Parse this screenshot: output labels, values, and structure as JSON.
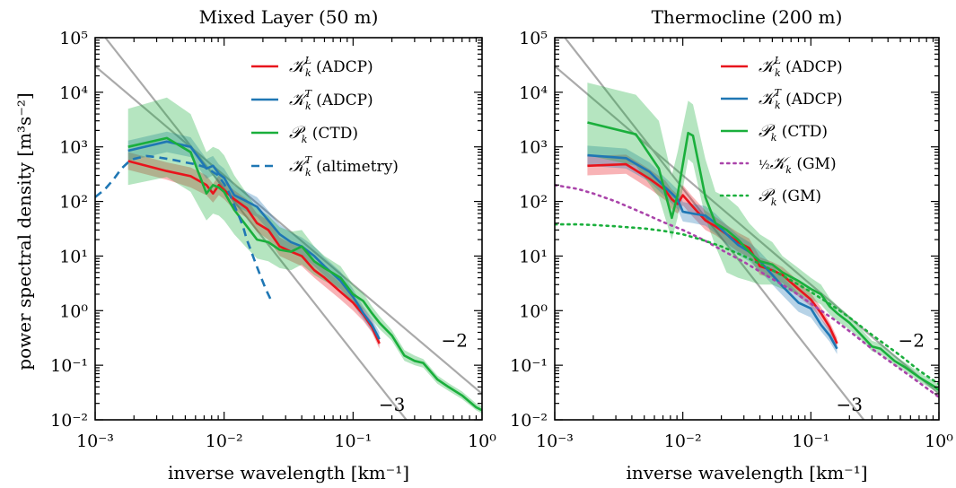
{
  "figure": {
    "ylabel": "power spectral density [m³s⁻²]",
    "xlabel": "inverse wavelength [km⁻¹]"
  },
  "chart_data": [
    {
      "type": "line",
      "title": "Mixed Layer (50 m)",
      "xlabel": "inverse wavelength [km⁻¹]",
      "ylabel": "power spectral density [m³s⁻²]",
      "xscale": "log",
      "yscale": "log",
      "xlim": [
        0.001,
        1
      ],
      "ylim": [
        0.01,
        100000
      ],
      "xticks": [
        "10⁻³",
        "10⁻²",
        "10⁻¹",
        "10⁰"
      ],
      "yticks": [
        "10⁻²",
        "10⁻¹",
        "10⁰",
        "10¹",
        "10²",
        "10³",
        "10⁴",
        "10⁵"
      ],
      "grid": false,
      "legend_position": "top-right",
      "series": [
        {
          "name": "KLk (ADCP)",
          "color": "#e8141c",
          "style": "solid",
          "x": [
            0.0018,
            0.0036,
            0.0055,
            0.0073,
            0.0082,
            0.0091,
            0.01,
            0.012,
            0.015,
            0.018,
            0.022,
            0.027,
            0.033,
            0.04,
            0.05,
            0.06,
            0.08,
            0.1,
            0.12,
            0.14,
            0.16
          ],
          "y": [
            550,
            360,
            290,
            200,
            140,
            200,
            160,
            110,
            75,
            40,
            30,
            15,
            12,
            10,
            5.5,
            4,
            2.2,
            1.4,
            0.85,
            0.5,
            0.25
          ],
          "band_lower": [
            380,
            250,
            180,
            130,
            95,
            130,
            110,
            70,
            50,
            28,
            20,
            10,
            8,
            6.5,
            4,
            2.8,
            1.6,
            1,
            0.65,
            0.4,
            0.2
          ],
          "band_upper": [
            800,
            520,
            420,
            300,
            210,
            300,
            230,
            160,
            110,
            60,
            45,
            22,
            17,
            14,
            8,
            5.8,
            3.2,
            1.9,
            1.1,
            0.65,
            0.32
          ]
        },
        {
          "name": "KTk (ADCP)",
          "color": "#1f77b4",
          "style": "solid",
          "x": [
            0.0018,
            0.0036,
            0.0055,
            0.0073,
            0.0082,
            0.0091,
            0.01,
            0.012,
            0.015,
            0.018,
            0.022,
            0.027,
            0.033,
            0.04,
            0.05,
            0.06,
            0.08,
            0.1,
            0.12,
            0.14,
            0.16
          ],
          "y": [
            850,
            1250,
            1000,
            400,
            450,
            320,
            270,
            130,
            100,
            80,
            45,
            25,
            18,
            15,
            10,
            6.5,
            3.5,
            1.8,
            0.9,
            0.55,
            0.3
          ],
          "band_lower": [
            550,
            800,
            650,
            260,
            300,
            210,
            180,
            85,
            65,
            52,
            30,
            16,
            12,
            10,
            6.5,
            4.4,
            2.4,
            1.3,
            0.7,
            0.42,
            0.23
          ],
          "band_upper": [
            1300,
            1900,
            1500,
            600,
            680,
            480,
            400,
            200,
            150,
            120,
            68,
            38,
            27,
            22,
            15,
            9.5,
            5.2,
            2.5,
            1.2,
            0.72,
            0.4
          ]
        },
        {
          "name": "Pk (CTD)",
          "color": "#1aaf3c",
          "style": "solid",
          "x": [
            0.0018,
            0.0036,
            0.0055,
            0.0073,
            0.0082,
            0.0091,
            0.01,
            0.012,
            0.015,
            0.018,
            0.022,
            0.027,
            0.033,
            0.04,
            0.05,
            0.06,
            0.08,
            0.1,
            0.12,
            0.14,
            0.16,
            0.2,
            0.25,
            0.3,
            0.35,
            0.45,
            0.55,
            0.7,
            0.9,
            1.0
          ],
          "y": [
            1000,
            1450,
            800,
            140,
            200,
            180,
            150,
            70,
            35,
            20,
            18,
            13,
            12,
            15,
            8,
            6,
            4,
            2,
            1.5,
            0.9,
            0.6,
            0.35,
            0.15,
            0.12,
            0.11,
            0.055,
            0.04,
            0.028,
            0.017,
            0.015
          ],
          "band_lower": [
            200,
            280,
            150,
            45,
            60,
            55,
            45,
            25,
            14,
            9,
            8,
            6,
            5.5,
            7,
            4.5,
            3.5,
            2.5,
            1.4,
            1.05,
            0.68,
            0.46,
            0.28,
            0.12,
            0.1,
            0.09,
            0.046,
            0.034,
            0.024,
            0.015,
            0.013
          ],
          "band_upper": [
            5000,
            8000,
            4000,
            800,
            1000,
            900,
            700,
            300,
            140,
            75,
            55,
            34,
            28,
            30,
            15,
            10,
            6.5,
            3,
            2.1,
            1.2,
            0.8,
            0.44,
            0.19,
            0.15,
            0.13,
            0.065,
            0.047,
            0.033,
            0.02,
            0.018
          ]
        },
        {
          "name": "KTk (altimetry)",
          "color": "#1f77b4",
          "style": "dashed",
          "x": [
            0.001,
            0.0012,
            0.0014,
            0.0016,
            0.0018,
            0.002,
            0.0025,
            0.003,
            0.004,
            0.005,
            0.006,
            0.007,
            0.008,
            0.009,
            0.01,
            0.011,
            0.012,
            0.013,
            0.014,
            0.015,
            0.017,
            0.019,
            0.021,
            0.023
          ],
          "y": [
            120,
            170,
            260,
            400,
            520,
            600,
            680,
            650,
            580,
            520,
            480,
            430,
            360,
            300,
            210,
            140,
            85,
            55,
            35,
            20,
            9,
            4.5,
            2.5,
            1.6
          ]
        }
      ],
      "reference_slopes": [
        {
          "label": "−2",
          "slope": -2,
          "x": [
            0.001,
            1
          ],
          "y": [
            30000,
            0.03
          ]
        },
        {
          "label": "−3",
          "slope": -3,
          "x": [
            0.0012,
            0.45
          ],
          "y": [
            100000,
            0.0019
          ]
        }
      ]
    },
    {
      "type": "line",
      "title": "Thermocline (200 m)",
      "xlabel": "inverse wavelength [km⁻¹]",
      "xscale": "log",
      "yscale": "log",
      "xlim": [
        0.001,
        1
      ],
      "ylim": [
        0.01,
        100000
      ],
      "xticks": [
        "10⁻³",
        "10⁻²",
        "10⁻¹",
        "10⁰"
      ],
      "yticks": [
        "10⁻²",
        "10⁻¹",
        "10⁰",
        "10¹",
        "10²",
        "10³",
        "10⁴",
        "10⁵"
      ],
      "grid": false,
      "legend_position": "top-right",
      "series": [
        {
          "name": "KLk (ADCP)",
          "color": "#e8141c",
          "style": "solid",
          "x": [
            0.0018,
            0.0036,
            0.0055,
            0.0073,
            0.0082,
            0.0091,
            0.01,
            0.012,
            0.015,
            0.018,
            0.022,
            0.027,
            0.033,
            0.04,
            0.05,
            0.06,
            0.08,
            0.1,
            0.12,
            0.14,
            0.16
          ],
          "y": [
            450,
            480,
            260,
            160,
            110,
            90,
            130,
            80,
            45,
            35,
            25,
            18,
            14,
            6.5,
            5.5,
            4.5,
            2.5,
            1.6,
            0.9,
            0.5,
            0.25
          ],
          "band_lower": [
            300,
            320,
            170,
            105,
            72,
            60,
            85,
            52,
            30,
            24,
            17,
            12,
            9.5,
            4.5,
            4,
            3.2,
            1.8,
            1.2,
            0.7,
            0.4,
            0.2
          ],
          "band_upper": [
            680,
            720,
            390,
            240,
            165,
            135,
            200,
            120,
            68,
            52,
            37,
            27,
            21,
            9.5,
            7.8,
            6.3,
            3.5,
            2.1,
            1.15,
            0.62,
            0.32
          ]
        },
        {
          "name": "KTk (ADCP)",
          "color": "#1f77b4",
          "style": "solid",
          "x": [
            0.0018,
            0.0036,
            0.0055,
            0.0073,
            0.0082,
            0.0091,
            0.01,
            0.012,
            0.015,
            0.018,
            0.022,
            0.027,
            0.033,
            0.04,
            0.05,
            0.06,
            0.08,
            0.1,
            0.12,
            0.14,
            0.16
          ],
          "y": [
            700,
            620,
            350,
            180,
            140,
            110,
            65,
            60,
            55,
            40,
            25,
            16,
            12,
            8,
            4.5,
            2.8,
            1.4,
            1.1,
            0.55,
            0.35,
            0.2
          ],
          "band_lower": [
            450,
            400,
            230,
            120,
            92,
            72,
            43,
            40,
            36,
            26,
            16,
            10.5,
            8,
            5.3,
            3,
            1.9,
            0.95,
            0.75,
            0.42,
            0.27,
            0.16
          ],
          "band_upper": [
            1050,
            930,
            520,
            270,
            210,
            165,
            98,
            90,
            82,
            60,
            37,
            24,
            18,
            12,
            6.8,
            4.2,
            2.1,
            1.55,
            0.72,
            0.46,
            0.26
          ]
        },
        {
          "name": "Pk (CTD)",
          "color": "#1aaf3c",
          "style": "solid",
          "x": [
            0.0018,
            0.0043,
            0.0065,
            0.0082,
            0.0091,
            0.011,
            0.012,
            0.015,
            0.018,
            0.022,
            0.027,
            0.033,
            0.04,
            0.05,
            0.06,
            0.08,
            0.1,
            0.12,
            0.14,
            0.16,
            0.2,
            0.25,
            0.3,
            0.35,
            0.45,
            0.55,
            0.7,
            0.9,
            1.0
          ],
          "y": [
            2800,
            1700,
            400,
            50,
            130,
            1800,
            1600,
            120,
            40,
            30,
            20,
            12,
            8,
            7,
            5,
            3.5,
            2.5,
            2,
            1.2,
            0.9,
            0.6,
            0.35,
            0.22,
            0.2,
            0.12,
            0.09,
            0.06,
            0.042,
            0.035
          ],
          "band_lower": [
            700,
            450,
            120,
            20,
            50,
            600,
            500,
            50,
            15,
            5,
            4,
            3.5,
            3,
            3,
            2.5,
            2,
            1.6,
            1.3,
            0.85,
            0.65,
            0.45,
            0.28,
            0.18,
            0.16,
            0.1,
            0.075,
            0.05,
            0.036,
            0.03
          ],
          "band_upper": [
            15000,
            9000,
            3000,
            300,
            800,
            7000,
            6000,
            600,
            150,
            120,
            80,
            40,
            25,
            18,
            10,
            6,
            4,
            3,
            1.7,
            1.25,
            0.8,
            0.45,
            0.28,
            0.25,
            0.15,
            0.11,
            0.075,
            0.052,
            0.043
          ]
        },
        {
          "name": "½Kk (GM)",
          "color": "#aa44aa",
          "style": "dotted",
          "x": [
            0.001,
            0.0015,
            0.002,
            0.003,
            0.005,
            0.007,
            0.01,
            0.015,
            0.02,
            0.03,
            0.05,
            0.07,
            0.1,
            0.15,
            0.2,
            0.3,
            0.5,
            0.7,
            1.0
          ],
          "y": [
            200,
            170,
            140,
            100,
            60,
            42,
            30,
            19,
            13,
            7.8,
            3.8,
            2.4,
            1.35,
            0.7,
            0.42,
            0.2,
            0.085,
            0.048,
            0.026
          ]
        },
        {
          "name": "Pk (GM)",
          "color": "#1aaf3c",
          "style": "dotted",
          "x": [
            0.001,
            0.0015,
            0.002,
            0.003,
            0.005,
            0.007,
            0.01,
            0.015,
            0.02,
            0.03,
            0.05,
            0.07,
            0.1,
            0.15,
            0.2,
            0.3,
            0.5,
            0.7,
            1.0
          ],
          "y": [
            38,
            38,
            37,
            35,
            32,
            29,
            25,
            19,
            15,
            10,
            5.5,
            3.6,
            2.2,
            1.2,
            0.75,
            0.36,
            0.15,
            0.08,
            0.045
          ]
        }
      ],
      "reference_slopes": [
        {
          "label": "−2",
          "slope": -2,
          "x": [
            0.001,
            1
          ],
          "y": [
            30000,
            0.03
          ]
        },
        {
          "label": "−3",
          "slope": -3,
          "x": [
            0.0012,
            0.45
          ],
          "y": [
            100000,
            0.0019
          ]
        }
      ]
    }
  ]
}
